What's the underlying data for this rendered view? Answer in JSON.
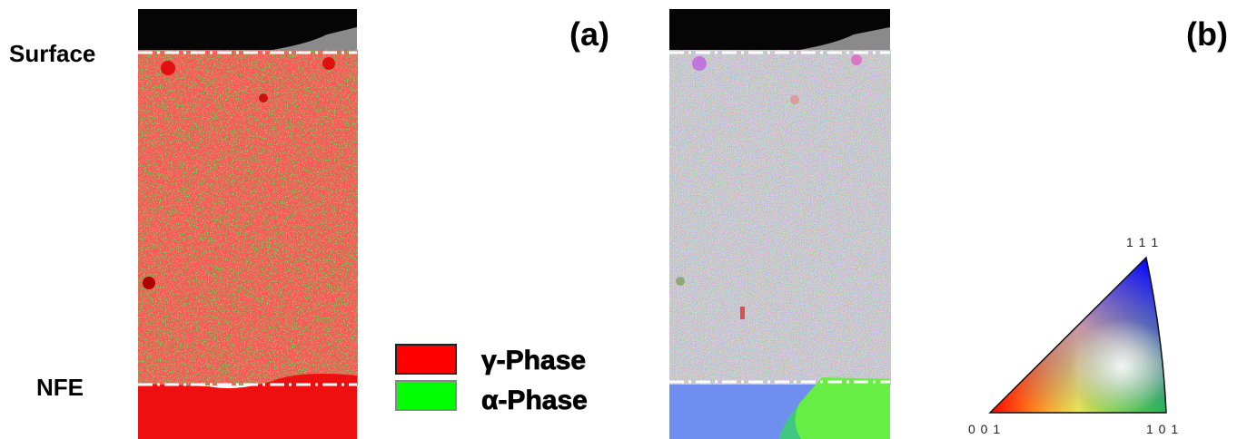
{
  "labels": {
    "surface": "Surface",
    "nfe": "NFE"
  },
  "panels": [
    {
      "tag": "(a)"
    },
    {
      "tag": "(b)"
    }
  ],
  "legend": [
    {
      "label": "γ-Phase"
    },
    {
      "label": "α-Phase"
    }
  ],
  "ipf_key": {
    "corners": [
      "1 1 1",
      "0 0 1",
      "1 0 1"
    ]
  }
}
